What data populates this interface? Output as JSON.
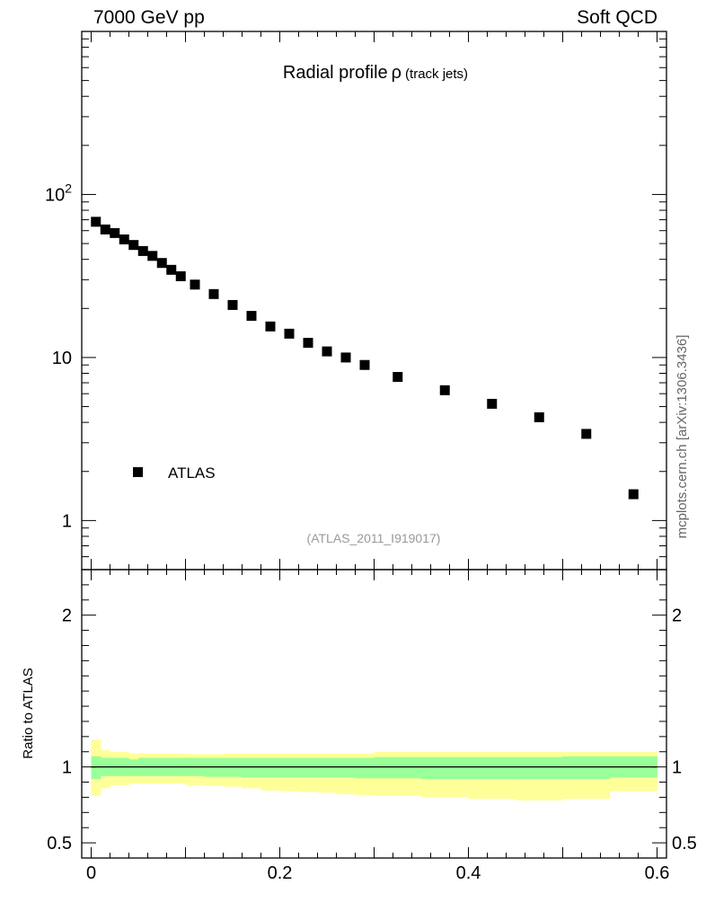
{
  "header": {
    "left": "7000 GeV pp",
    "right": "Soft QCD"
  },
  "watermark": "mcplots.cern.ch [arXiv:1306.3436]",
  "chart_data": [
    {
      "type": "scatter",
      "title": "Radial profile",
      "title_symbol": "ρ",
      "title_suffix": "(track jets)",
      "analysis_tag": "(ATLAS_2011_I919017)",
      "yscale": "log",
      "xlim": [
        -0.01,
        0.61
      ],
      "ylim": [
        0.5,
        1000
      ],
      "ytick_labels": [
        {
          "value": 1,
          "label": "1"
        },
        {
          "value": 10,
          "label": "10"
        },
        {
          "value": 100,
          "base": "10",
          "exp": "2"
        }
      ],
      "legend": "top-left-inside",
      "series": [
        {
          "name": "ATLAS",
          "marker": "square",
          "color": "#000000",
          "x": [
            0.005,
            0.015,
            0.025,
            0.035,
            0.045,
            0.055,
            0.065,
            0.075,
            0.085,
            0.095,
            0.11,
            0.13,
            0.15,
            0.17,
            0.19,
            0.21,
            0.23,
            0.25,
            0.27,
            0.29,
            0.325,
            0.375,
            0.425,
            0.475,
            0.525,
            0.575
          ],
          "y": [
            68,
            61,
            58,
            53,
            49,
            45,
            42,
            38,
            34.5,
            31.5,
            28,
            24.5,
            21,
            18,
            15.5,
            14,
            12.3,
            10.9,
            10.0,
            9.0,
            7.6,
            6.3,
            5.2,
            4.3,
            3.4,
            1.45
          ]
        }
      ]
    },
    {
      "type": "area",
      "ylabel": "Ratio to ATLAS",
      "xlim": [
        -0.01,
        0.61
      ],
      "ylim": [
        0.4,
        2.3
      ],
      "xtick_labels": [
        {
          "value": 0,
          "label": "0"
        },
        {
          "value": 0.2,
          "label": "0.2"
        },
        {
          "value": 0.4,
          "label": "0.4"
        },
        {
          "value": 0.6,
          "label": "0.6"
        }
      ],
      "ytick_labels": [
        {
          "value": 0.5,
          "label": "0.5"
        },
        {
          "value": 1,
          "label": "1"
        },
        {
          "value": 2,
          "label": "2"
        }
      ],
      "reference_line": 1,
      "bin_edges": [
        0,
        0.01,
        0.02,
        0.03,
        0.04,
        0.05,
        0.06,
        0.07,
        0.08,
        0.09,
        0.1,
        0.12,
        0.14,
        0.16,
        0.18,
        0.2,
        0.22,
        0.24,
        0.26,
        0.28,
        0.3,
        0.35,
        0.4,
        0.45,
        0.5,
        0.55,
        0.6
      ],
      "bands": [
        {
          "name": "total uncertainty",
          "color": "#ffff99",
          "lo": [
            0.81,
            0.86,
            0.88,
            0.88,
            0.89,
            0.89,
            0.89,
            0.89,
            0.89,
            0.89,
            0.88,
            0.875,
            0.87,
            0.86,
            0.845,
            0.84,
            0.835,
            0.83,
            0.82,
            0.815,
            0.81,
            0.8,
            0.79,
            0.78,
            0.79,
            0.84
          ],
          "hi": [
            1.18,
            1.11,
            1.1,
            1.1,
            1.09,
            1.09,
            1.09,
            1.09,
            1.09,
            1.09,
            1.085,
            1.085,
            1.09,
            1.09,
            1.09,
            1.09,
            1.09,
            1.09,
            1.09,
            1.09,
            1.1,
            1.1,
            1.1,
            1.1,
            1.1,
            1.1
          ]
        },
        {
          "name": "statistical uncertainty",
          "color": "#99ff99",
          "lo": [
            0.92,
            0.94,
            0.94,
            0.94,
            0.94,
            0.94,
            0.94,
            0.94,
            0.94,
            0.94,
            0.94,
            0.935,
            0.935,
            0.93,
            0.93,
            0.93,
            0.93,
            0.93,
            0.93,
            0.925,
            0.925,
            0.92,
            0.92,
            0.92,
            0.92,
            0.93
          ],
          "hi": [
            1.07,
            1.06,
            1.06,
            1.06,
            1.05,
            1.06,
            1.06,
            1.06,
            1.06,
            1.06,
            1.06,
            1.06,
            1.06,
            1.06,
            1.06,
            1.06,
            1.06,
            1.06,
            1.06,
            1.06,
            1.065,
            1.065,
            1.065,
            1.065,
            1.07,
            1.07
          ]
        }
      ]
    }
  ]
}
